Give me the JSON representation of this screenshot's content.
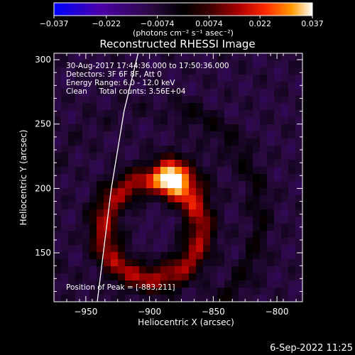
{
  "chart_data": {
    "type": "heatmap",
    "title": "Reconstructed RHESSI Image",
    "xlabel": "Heliocentric X (arcsec)",
    "ylabel": "Heliocentric Y (arcsec)",
    "xlim": [
      -975,
      -780
    ],
    "ylim": [
      112,
      305
    ],
    "x_ticks": [
      -950,
      -900,
      -850,
      -800
    ],
    "y_ticks": [
      150,
      200,
      250,
      300
    ],
    "colorbar": {
      "range": [
        -0.037,
        0.037
      ],
      "ticks": [
        "-0.037",
        "-0.022",
        "-0.0074",
        "0.0074",
        "0.022",
        "0.037"
      ],
      "label": "(photons cm⁻² s⁻¹ asec⁻²)",
      "colors": [
        "#0000ff",
        "#4b00a8",
        "#2a0a40",
        "#000000",
        "#380000",
        "#b00000",
        "#ff2a00",
        "#ff9a00",
        "#ffffff"
      ]
    },
    "annotations": [
      "30-Aug-2017 17:44:36.000 to 17:50:36.000",
      "Detectors: 3F 6F 8F, Att 0",
      "Energy Range: 6.0 - 12.0 keV",
      "Clean     Total counts: 3.56E+04"
    ],
    "peak_label": "Position of Peak = [-883,211]",
    "peak": {
      "x": -883,
      "y": 211
    },
    "ring": {
      "center_x": -898,
      "center_y": 168,
      "radius": 38
    },
    "limb_line": [
      [
        -941,
        112
      ],
      [
        -930,
        200
      ],
      [
        -920,
        260
      ],
      [
        -909,
        305
      ]
    ],
    "timestamp": "6-Sep-2022 11:25"
  }
}
